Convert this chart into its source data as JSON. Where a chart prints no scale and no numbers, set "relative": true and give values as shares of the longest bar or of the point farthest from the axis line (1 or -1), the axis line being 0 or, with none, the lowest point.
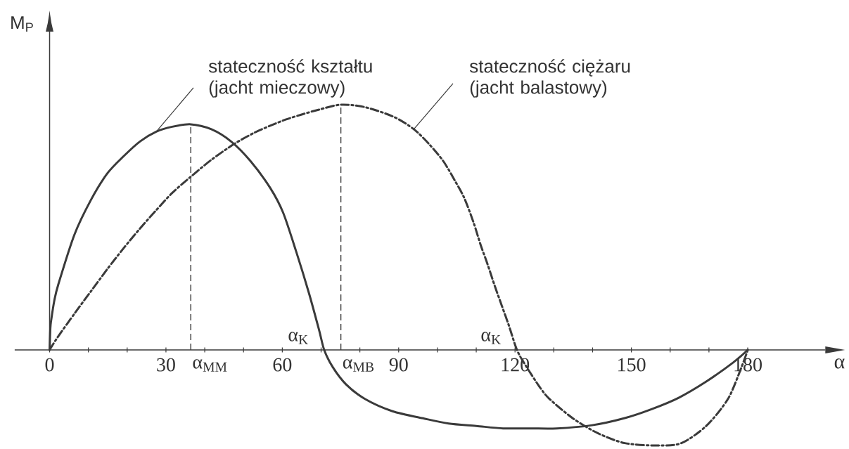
{
  "chart_data": {
    "type": "line",
    "xlabel": "α",
    "ylabel": "M$_{P}$",
    "relative": true,
    "xlim": [
      -9,
      200
    ],
    "xticks": [
      0,
      {
        "value": 10,
        "label": null
      },
      {
        "value": 20,
        "label": null
      },
      30,
      {
        "value": 40,
        "label": null
      },
      {
        "value": 50,
        "label": null
      },
      60,
      {
        "value": 70,
        "label": null
      },
      {
        "value": 80,
        "label": null
      },
      90,
      {
        "value": 100,
        "label": null
      },
      {
        "value": 110,
        "label": null
      },
      120,
      {
        "value": 130,
        "label": null
      },
      {
        "value": 140,
        "label": null
      },
      150,
      {
        "value": 160,
        "label": null
      },
      {
        "value": 170,
        "label": null
      },
      180
    ],
    "series": [
      {
        "name": "stateczność kształtu (jacht mieczowy)",
        "color": "#3a3a3a",
        "line_style": "solid",
        "x": [
          0,
          0.2,
          0.4,
          1.2,
          2.3,
          6.4,
          10.6,
          14.9,
          19.1,
          23.3,
          27.5,
          31.6,
          36.4,
          41.7,
          46.8,
          51.8,
          56.9,
          60.2,
          63.6,
          66.9,
          69.5,
          70.8,
          73.0,
          76.4,
          81.3,
          88.4,
          96.6,
          102.9,
          110.0,
          116.9,
          124.0,
          130.8,
          139.9,
          148.3,
          155.3,
          162.2,
          169.3,
          176.2,
          180
        ],
        "values": [
          0,
          0.09,
          0.12,
          0.2,
          0.27,
          0.47,
          0.61,
          0.72,
          0.79,
          0.85,
          0.89,
          0.91,
          0.92,
          0.9,
          0.85,
          0.77,
          0.66,
          0.56,
          0.4,
          0.23,
          0.08,
          0,
          -0.07,
          -0.14,
          -0.2,
          -0.25,
          -0.28,
          -0.3,
          -0.31,
          -0.32,
          -0.32,
          -0.32,
          -0.307,
          -0.278,
          -0.241,
          -0.195,
          -0.129,
          -0.052,
          0
        ]
      },
      {
        "name": "stateczność ciężaru (jacht balastowy)",
        "color": "#3a3a3a",
        "line_style": "dashdot",
        "x": [
          0,
          2.0,
          6.5,
          10.7,
          14.9,
          19.1,
          23.3,
          27.5,
          31.6,
          36.3,
          41.7,
          47.6,
          52.7,
          57.0,
          61.0,
          65.0,
          69.5,
          75.1,
          81.3,
          88.8,
          93.9,
          97.8,
          101.5,
          104.5,
          106.9,
          109.3,
          111.1,
          112.9,
          114.8,
          116.6,
          118.4,
          120.5,
          122.6,
          126.3,
          128.9,
          135.0,
          141.4,
          148.3,
          156.8,
          162.9,
          169.3,
          174.9,
          178.4,
          180
        ],
        "values": [
          0,
          0.05,
          0.15,
          0.24,
          0.33,
          0.415,
          0.495,
          0.57,
          0.64,
          0.705,
          0.775,
          0.84,
          0.885,
          0.915,
          0.94,
          0.96,
          0.98,
          1,
          0.99,
          0.95,
          0.9,
          0.84,
          0.77,
          0.69,
          0.62,
          0.52,
          0.43,
          0.35,
          0.26,
          0.18,
          0.1,
          0,
          -0.06,
          -0.15,
          -0.2,
          -0.28,
          -0.34,
          -0.38,
          -0.39,
          -0.38,
          -0.31,
          -0.2,
          -0.07,
          0
        ]
      }
    ],
    "ref_lines": [
      {
        "axis": "x",
        "value": 36.4,
        "label": "α$_{MM}$",
        "line_style": "dashed",
        "color": "#3a3a3a"
      },
      {
        "axis": "x",
        "value": 75.1,
        "label": "α$_{MB}$",
        "line_style": "dashed",
        "color": "#3a3a3a"
      }
    ],
    "annotations": [
      {
        "text": "α$_{K}$",
        "x": 70.8,
        "y": 0
      },
      {
        "text": "α$_{K}$",
        "x": 120.5,
        "y": 0
      }
    ]
  }
}
